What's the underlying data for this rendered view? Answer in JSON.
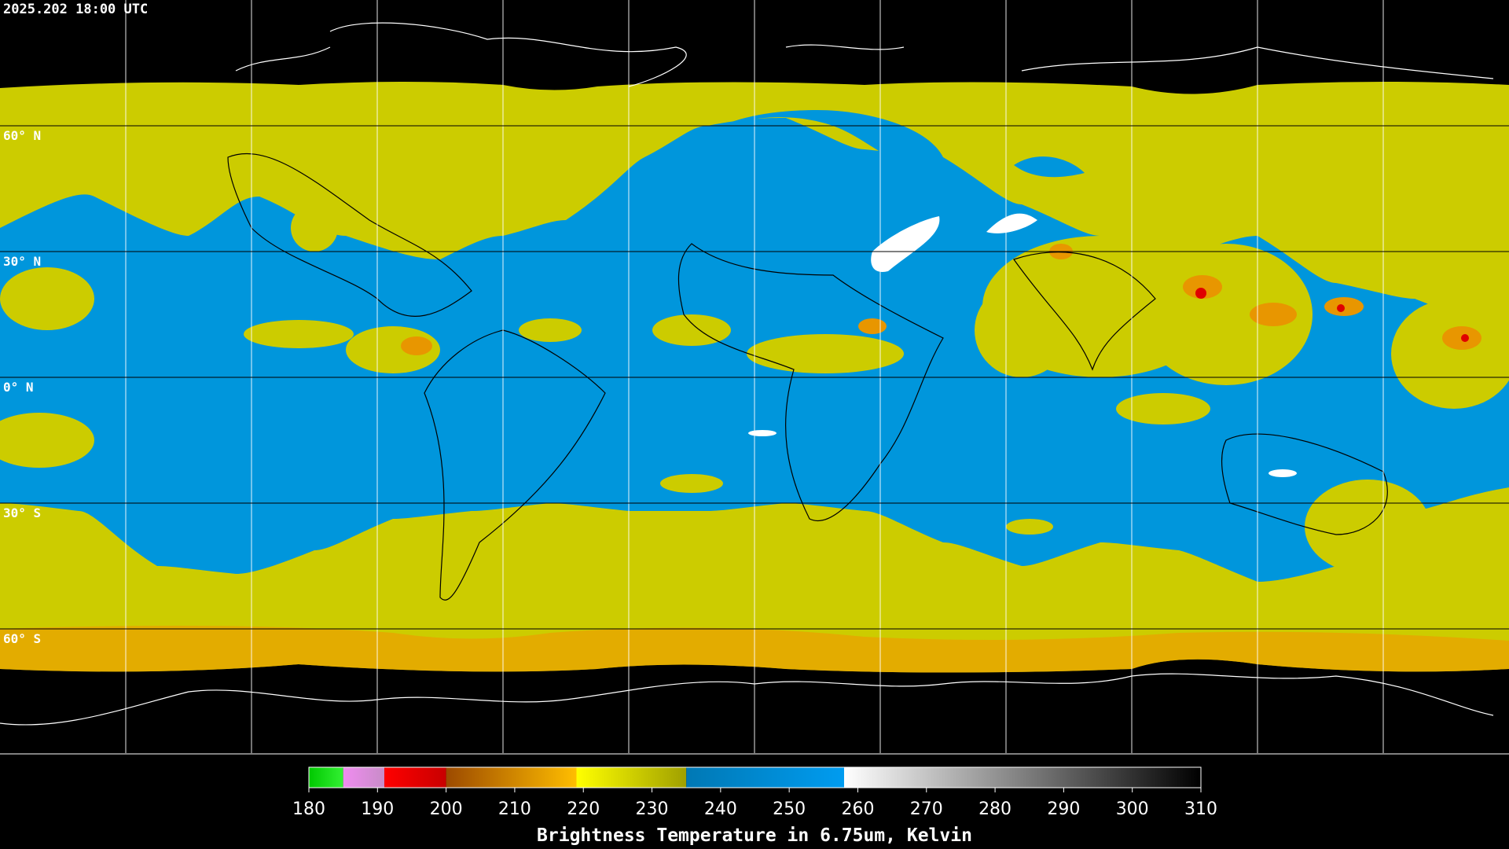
{
  "header": {
    "timestamp": "2025.202 18:00 UTC"
  },
  "map": {
    "latitude_labels": [
      "60° N",
      "30° N",
      "0° N",
      "30° S",
      "60° S"
    ]
  },
  "colorbar": {
    "title": "Brightness Temperature in 6.75um, Kelvin",
    "range": [
      180,
      310
    ],
    "ticks": [
      180,
      190,
      200,
      210,
      220,
      230,
      240,
      250,
      260,
      270,
      280,
      290,
      300,
      310
    ],
    "segments": [
      {
        "from": 180,
        "to": 185,
        "colors": [
          "#00c800",
          "#33f033"
        ]
      },
      {
        "from": 185,
        "to": 191,
        "colors": [
          "#f08cf0",
          "#c88cc8"
        ]
      },
      {
        "from": 191,
        "to": 200,
        "colors": [
          "#ff0000",
          "#c80000"
        ]
      },
      {
        "from": 200,
        "to": 219,
        "colors": [
          "#9c4a00",
          "#ffbe00"
        ]
      },
      {
        "from": 219,
        "to": 235,
        "colors": [
          "#ffff00",
          "#a0a000"
        ]
      },
      {
        "from": 235,
        "to": 258,
        "colors": [
          "#0078b4",
          "#009cf0"
        ]
      },
      {
        "from": 258,
        "to": 310,
        "colors": [
          "#ffffff",
          "#000000"
        ]
      }
    ]
  }
}
